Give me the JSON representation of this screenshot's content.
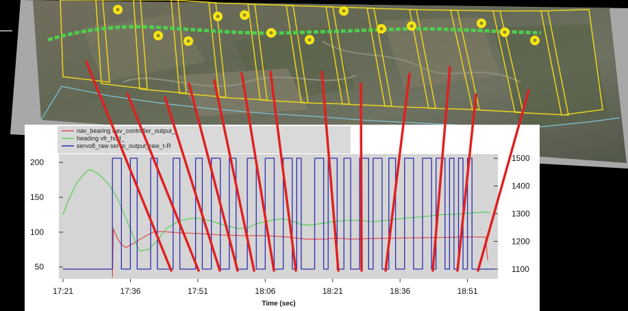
{
  "chart_data": {
    "type": "line",
    "title": "",
    "xlabel": "Time (sec)",
    "ylabel": "",
    "x_ticks": [
      "17:21",
      "17:36",
      "17:51",
      "18:06",
      "18:21",
      "18:36",
      "18:51"
    ],
    "x_range_minutes": [
      0,
      96
    ],
    "y_left_ticks": [
      50,
      100,
      150,
      200
    ],
    "y_left_range": [
      35,
      210
    ],
    "y_right_ticks": [
      1100,
      1200,
      1300,
      1400,
      1500
    ],
    "y_right_range": [
      1070,
      1510
    ],
    "grid": false,
    "legend_position": "top-left",
    "series": [
      {
        "name": "nav_bearing nav_controller_output_t",
        "color": "#e05050",
        "axis": "left",
        "points": [
          [
            11,
            35
          ],
          [
            11.2,
            105
          ],
          [
            12,
            92
          ],
          [
            13,
            82
          ],
          [
            14,
            78
          ],
          [
            16,
            85
          ],
          [
            18,
            93
          ],
          [
            20,
            100
          ],
          [
            22,
            101
          ],
          [
            26,
            99
          ],
          [
            30,
            98
          ],
          [
            35,
            96
          ],
          [
            40,
            95
          ],
          [
            45,
            95
          ],
          [
            50,
            93
          ],
          [
            54,
            90
          ],
          [
            58,
            90
          ],
          [
            60,
            91
          ],
          [
            62,
            91
          ],
          [
            64,
            90
          ],
          [
            70,
            91
          ],
          [
            80,
            92
          ],
          [
            90,
            93
          ],
          [
            94,
            93
          ],
          [
            94.5,
            60
          ]
        ]
      },
      {
        "name": "heading vfr_hud_",
        "color": "#5ccf5c",
        "axis": "left",
        "points": [
          [
            0,
            125
          ],
          [
            1,
            143
          ],
          [
            3,
            170
          ],
          [
            5,
            186
          ],
          [
            6,
            190
          ],
          [
            8,
            183
          ],
          [
            10,
            170
          ],
          [
            12,
            150
          ],
          [
            14,
            120
          ],
          [
            16,
            88
          ],
          [
            17,
            73
          ],
          [
            19,
            75
          ],
          [
            21,
            88
          ],
          [
            23,
            105
          ],
          [
            25,
            113
          ],
          [
            27,
            118
          ],
          [
            29,
            120
          ],
          [
            31,
            119
          ],
          [
            33,
            116
          ],
          [
            35,
            112
          ],
          [
            37,
            108
          ],
          [
            39,
            105
          ],
          [
            41,
            106
          ],
          [
            43,
            112
          ],
          [
            45,
            115
          ],
          [
            47,
            118
          ],
          [
            49,
            119
          ],
          [
            51,
            116
          ],
          [
            53,
            111
          ],
          [
            55,
            110
          ],
          [
            57,
            112
          ],
          [
            60,
            115
          ],
          [
            63,
            117
          ],
          [
            66,
            117
          ],
          [
            69,
            115
          ],
          [
            72,
            117
          ],
          [
            76,
            120
          ],
          [
            80,
            122
          ],
          [
            84,
            125
          ],
          [
            88,
            126
          ],
          [
            90,
            127
          ],
          [
            92,
            128
          ],
          [
            94,
            129
          ],
          [
            95,
            127
          ]
        ]
      },
      {
        "name": "servo8_raw servo_output_raw_t-R",
        "color": "#2a2ab0",
        "axis": "right",
        "high_low": [
          1500,
          1100
        ],
        "high_intervals": [
          [
            11,
            13
          ],
          [
            15,
            16.5
          ],
          [
            19.5,
            21
          ],
          [
            24.5,
            26
          ],
          [
            29.5,
            31
          ],
          [
            33,
            35
          ],
          [
            37,
            38.5
          ],
          [
            41,
            43
          ],
          [
            45,
            47
          ],
          [
            49,
            51
          ],
          [
            52,
            53
          ],
          [
            56,
            58
          ],
          [
            59,
            61
          ],
          [
            62.5,
            64
          ],
          [
            66,
            68
          ],
          [
            69,
            71
          ],
          [
            72.5,
            74
          ],
          [
            76,
            78
          ],
          [
            80,
            82
          ],
          [
            83,
            85
          ],
          [
            86,
            87
          ],
          [
            88,
            89
          ],
          [
            90,
            91
          ]
        ]
      }
    ]
  },
  "legend": [
    {
      "label": "nav_bearing nav_controller_output_t",
      "color": "#e05050"
    },
    {
      "label": "heading vfr_hud_",
      "color": "#5ccf5c"
    },
    {
      "label": "servo8_raw servo_output_raw_t-R",
      "color": "#2a2ab0"
    }
  ],
  "aerial_overlay": {
    "type": "image mosaic",
    "waypoint_color": "#f5e414",
    "flight_path_color": "#4cd84c",
    "frame_color": "#e8d020",
    "connector_color": "#e02020"
  }
}
